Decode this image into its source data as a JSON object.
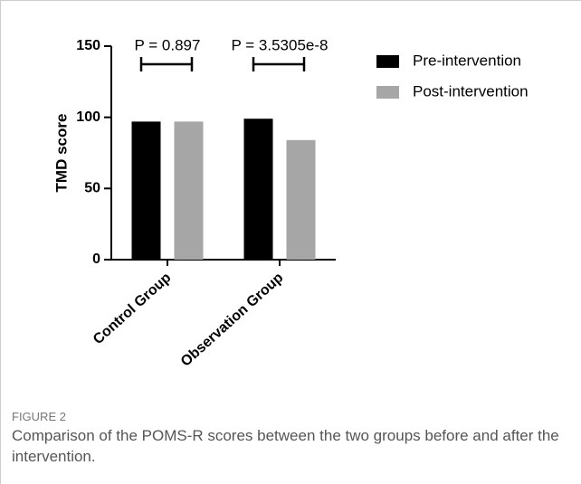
{
  "chart_data": {
    "type": "bar",
    "ylabel": "TMD score",
    "categories": [
      "Control Group",
      "Observation Group"
    ],
    "series": [
      {
        "name": "Pre-intervention",
        "color": "#000000",
        "values": [
          97,
          99
        ]
      },
      {
        "name": "Post-intervention",
        "color": "#a6a6a6",
        "values": [
          97,
          84
        ]
      }
    ],
    "annotations": [
      "P = 0.897",
      "P = 3.5305e-8"
    ],
    "ylim": [
      0,
      150
    ],
    "yticks": [
      0,
      50,
      100,
      150
    ],
    "legend": "right"
  },
  "figure": {
    "label": "FIGURE 2",
    "caption": "Comparison of the POMS-R scores between the two groups before and after the intervention."
  }
}
